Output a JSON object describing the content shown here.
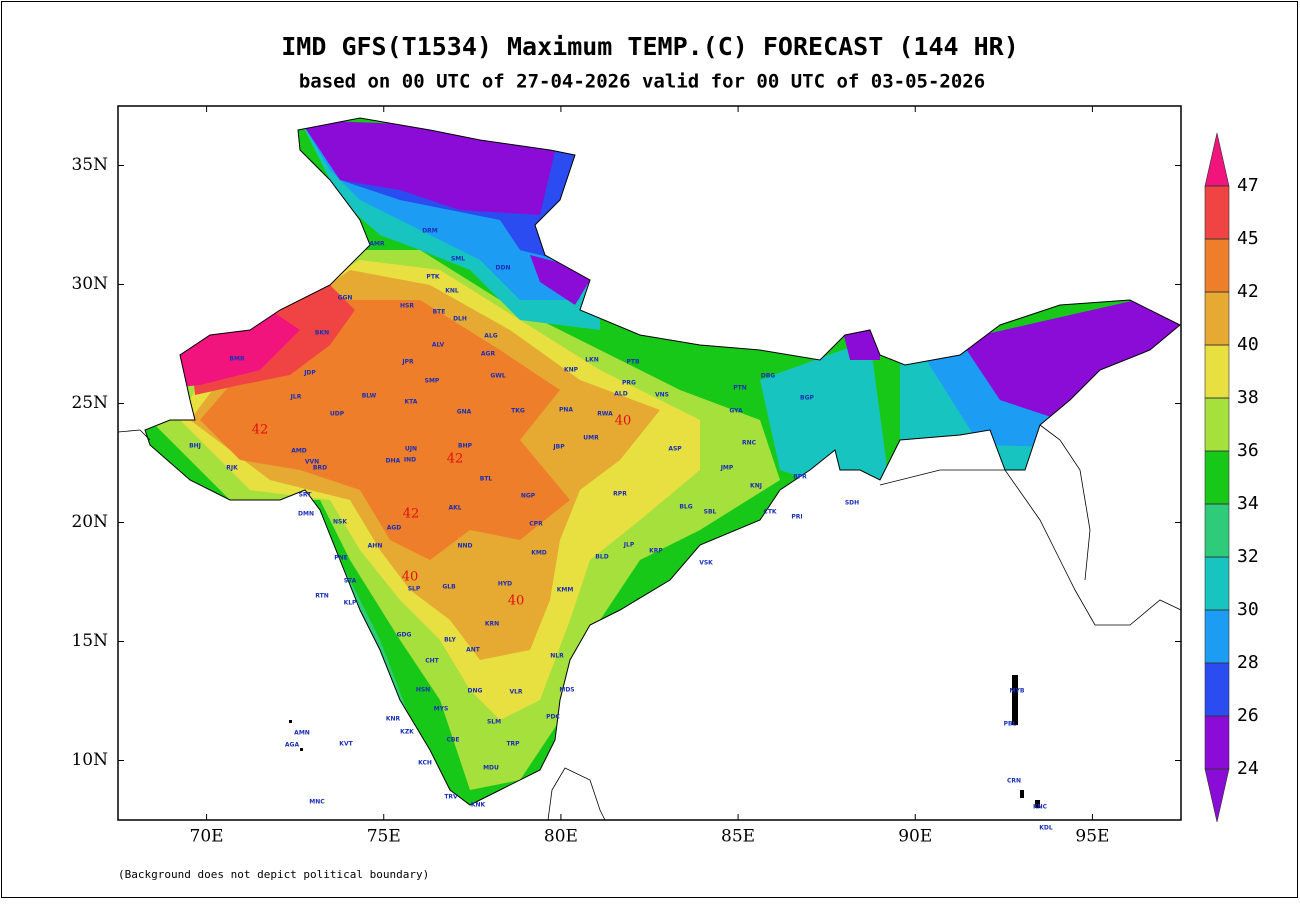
{
  "header": {
    "title": "IMD GFS(T1534) Maximum TEMP.(C) FORECAST (144 HR)",
    "subtitle": "based on 00 UTC of 27-04-2026 valid for 00 UTC of 03-05-2026"
  },
  "map": {
    "xlim": [
      67.5,
      97.5
    ],
    "ylim": [
      7.5,
      37.5
    ],
    "xticks": [
      {
        "value": 70,
        "label": "70E"
      },
      {
        "value": 75,
        "label": "75E"
      },
      {
        "value": 80,
        "label": "80E"
      },
      {
        "value": 85,
        "label": "85E"
      },
      {
        "value": 90,
        "label": "90E"
      },
      {
        "value": 95,
        "label": "95E"
      }
    ],
    "yticks": [
      {
        "value": 10,
        "label": "10N"
      },
      {
        "value": 15,
        "label": "15N"
      },
      {
        "value": 20,
        "label": "20N"
      },
      {
        "value": 25,
        "label": "25N"
      },
      {
        "value": 30,
        "label": "30N"
      },
      {
        "value": 35,
        "label": "35N"
      }
    ],
    "contour_labels": [
      "42",
      "42",
      "42",
      "40",
      "40",
      "40"
    ],
    "stations": [
      "AMR",
      "PTK",
      "KNL",
      "DLH",
      "BKN",
      "GGN",
      "HSR",
      "BTE",
      "ALG",
      "AGR",
      "JPR",
      "ALV",
      "JDP",
      "SMP",
      "GWL",
      "KNP",
      "LKN",
      "PTB",
      "VNS",
      "PRG",
      "ALD",
      "BMR",
      "JLR",
      "UDP",
      "KTA",
      "BLW",
      "GNA",
      "TKG",
      "PNA",
      "RWA",
      "UMR",
      "JBP",
      "BHP",
      "BHJ",
      "AMD",
      "RJK",
      "VVN",
      "BRD",
      "DHA",
      "IND",
      "UJN",
      "BTL",
      "NGP",
      "RPR",
      "AKL",
      "GYA",
      "PTN",
      "DBG",
      "BGP",
      "ASP",
      "RNC",
      "JMP",
      "KNJ",
      "BLG",
      "SBL",
      "CTK",
      "PRI",
      "BPR",
      "SDH",
      "CPR",
      "DMN",
      "NSK",
      "AGD",
      "SRT",
      "NND",
      "KMD",
      "PNE",
      "AHN",
      "BLD",
      "JLP",
      "KRP",
      "VSK",
      "STA",
      "SLP",
      "GLB",
      "HYD",
      "KMM",
      "RTN",
      "KLP",
      "GDG",
      "BLY",
      "KRN",
      "ANT",
      "NLR",
      "CHT",
      "HSN",
      "DNG",
      "VLR",
      "MDS",
      "MYS",
      "SLM",
      "KNR",
      "KZK",
      "CBE",
      "TRP",
      "PDC",
      "KCH",
      "MDU",
      "TRV",
      "KNK",
      "AMN",
      "AGA",
      "KVT",
      "MNC",
      "PBL",
      "CRN",
      "KNC",
      "KDL",
      "MYB",
      "DRM",
      "SML",
      "DDN"
    ],
    "footnote": "(Background does not depict political boundary)"
  },
  "colorbar": {
    "levels": [
      24,
      26,
      28,
      30,
      32,
      34,
      36,
      38,
      40,
      42,
      45,
      47
    ],
    "colors": [
      "#8a0cd6",
      "#8a0cd6",
      "#2a4cf0",
      "#1c9cf2",
      "#18c4c0",
      "#2ecc7a",
      "#18c818",
      "#a6e03c",
      "#e8e040",
      "#e6aa32",
      "#ee7e2a",
      "#f04444",
      "#f0147c"
    ]
  }
}
